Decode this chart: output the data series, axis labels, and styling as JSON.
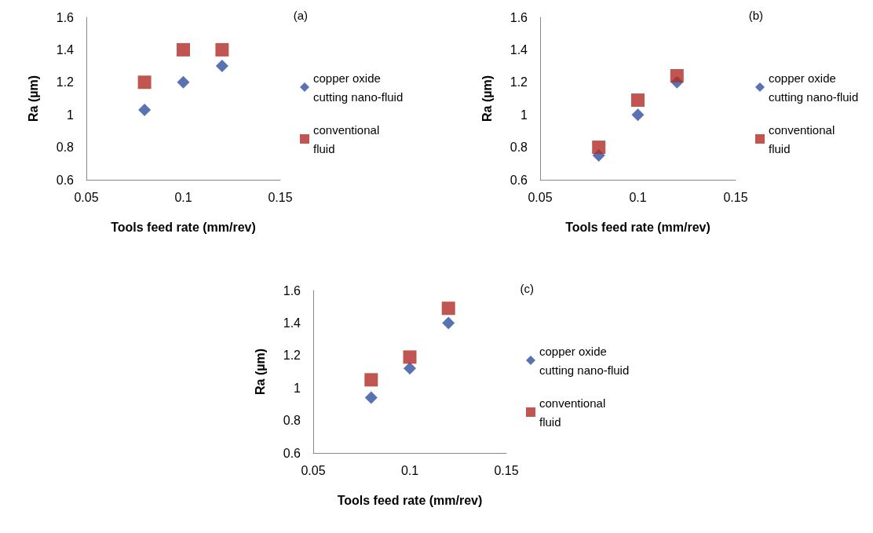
{
  "chart_data": [
    {
      "type": "scatter",
      "title": "(a)",
      "xlabel": "Tools feed rate (mm/rev)",
      "ylabel": "Ra (µm)",
      "x": [
        0.08,
        0.1,
        0.12
      ],
      "series": [
        {
          "name": "copper oxide cutting nano-fluid",
          "color": "#2f4f9f",
          "marker": "diamond",
          "values": [
            1.03,
            1.2,
            1.3
          ]
        },
        {
          "name": "conventional fluid",
          "color": "#b02a25",
          "marker": "square",
          "values": [
            1.2,
            1.4,
            1.4
          ]
        }
      ],
      "xlim": [
        0.05,
        0.15
      ],
      "xticks": [
        0.05,
        0.1,
        0.15
      ],
      "ylim": [
        0.6,
        1.6
      ],
      "yticks": [
        0.6,
        0.8,
        1,
        1.2,
        1.4,
        1.6
      ],
      "grid": false,
      "legend": "right"
    },
    {
      "type": "scatter",
      "title": "(b)",
      "xlabel": "Tools feed rate (mm/rev)",
      "ylabel": "Ra (µm)",
      "x": [
        0.08,
        0.1,
        0.12
      ],
      "series": [
        {
          "name": "copper oxide cutting nano-fluid",
          "color": "#2f4f9f",
          "marker": "diamond",
          "values": [
            0.75,
            1.0,
            1.2
          ]
        },
        {
          "name": "conventional fluid",
          "color": "#b02a25",
          "marker": "square",
          "values": [
            0.8,
            1.09,
            1.24
          ]
        }
      ],
      "xlim": [
        0.05,
        0.15
      ],
      "xticks": [
        0.05,
        0.1,
        0.15
      ],
      "ylim": [
        0.6,
        1.6
      ],
      "yticks": [
        0.6,
        0.8,
        1,
        1.2,
        1.4,
        1.6
      ],
      "grid": false,
      "legend": "right"
    },
    {
      "type": "scatter",
      "title": "(c)",
      "xlabel": "Tools feed rate (mm/rev)",
      "ylabel": "Ra (µm)",
      "x": [
        0.08,
        0.1,
        0.12
      ],
      "series": [
        {
          "name": "copper oxide cutting nano-fluid",
          "color": "#2f4f9f",
          "marker": "diamond",
          "values": [
            0.94,
            1.12,
            1.4
          ]
        },
        {
          "name": "conventional fluid",
          "color": "#b02a25",
          "marker": "square",
          "values": [
            1.05,
            1.19,
            1.49
          ]
        }
      ],
      "xlim": [
        0.05,
        0.15
      ],
      "xticks": [
        0.05,
        0.1,
        0.15
      ],
      "ylim": [
        0.6,
        1.6
      ],
      "yticks": [
        0.6,
        0.8,
        1,
        1.2,
        1.4,
        1.6
      ],
      "grid": false,
      "legend": "right"
    }
  ]
}
